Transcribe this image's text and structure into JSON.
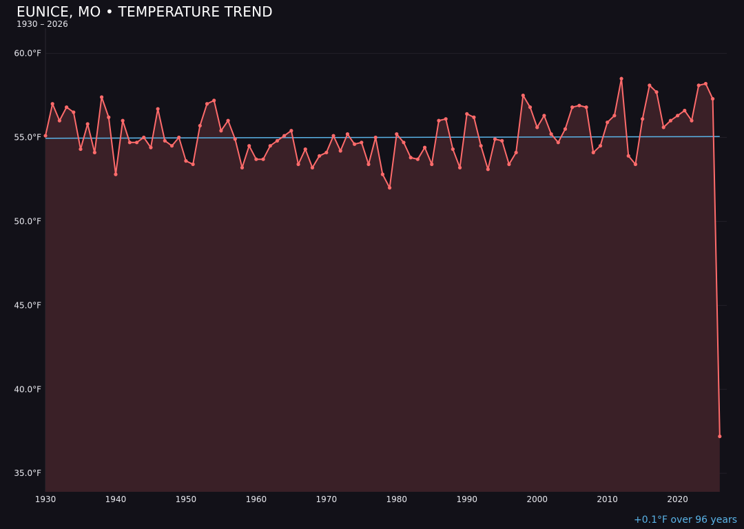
{
  "chart_data": {
    "type": "line",
    "title": "EUNICE, MO • TEMPERATURE TREND",
    "subtitle": "1930 – 2026",
    "annotation": "+0.1°F over 96 years",
    "xlim": [
      1930,
      2027
    ],
    "ylim": [
      33.9,
      61.5
    ],
    "x_ticks": [
      1930,
      1940,
      1950,
      1960,
      1970,
      1980,
      1990,
      2000,
      2010,
      2020
    ],
    "y_ticks": [
      35,
      40,
      45,
      50,
      55,
      60
    ],
    "y_tick_labels": [
      "35.0°F",
      "40.0°F",
      "45.0°F",
      "50.0°F",
      "55.0°F",
      "60.0°F"
    ],
    "grid": true,
    "colors": {
      "series": "#ff6b6b",
      "fill": "#3a2027",
      "trend": "#5ab4e8",
      "background": "#121118"
    },
    "series": [
      {
        "x": [
          1930,
          1931,
          1932,
          1933,
          1934,
          1935,
          1936,
          1937,
          1938,
          1939,
          1940,
          1941,
          1942,
          1943,
          1944,
          1945,
          1946,
          1947,
          1948,
          1949,
          1950,
          1951,
          1952,
          1953,
          1954,
          1955,
          1956,
          1957,
          1958,
          1959,
          1960,
          1961,
          1962,
          1963,
          1964,
          1965,
          1966,
          1967,
          1968,
          1969,
          1970,
          1971,
          1972,
          1973,
          1974,
          1975,
          1976,
          1977,
          1978,
          1979,
          1980,
          1981,
          1982,
          1983,
          1984,
          1985,
          1986,
          1987,
          1988,
          1989,
          1990,
          1991,
          1992,
          1993,
          1994,
          1995,
          1996,
          1997,
          1998,
          1999,
          2000,
          2001,
          2002,
          2003,
          2004,
          2005,
          2006,
          2007,
          2008,
          2009,
          2010,
          2011,
          2012,
          2013,
          2014,
          2015,
          2016,
          2017,
          2018,
          2019,
          2020,
          2021,
          2022,
          2023,
          2024,
          2025,
          2026
        ],
        "values": [
          55.1,
          57.0,
          56.0,
          56.8,
          56.5,
          54.3,
          55.8,
          54.1,
          57.4,
          56.2,
          52.8,
          56.0,
          54.7,
          54.7,
          55.0,
          54.4,
          56.7,
          54.8,
          54.5,
          55.0,
          53.6,
          53.4,
          55.7,
          57.0,
          57.2,
          55.4,
          56.0,
          54.9,
          53.2,
          54.5,
          53.7,
          53.7,
          54.5,
          54.8,
          55.1,
          55.4,
          53.4,
          54.3,
          53.2,
          53.9,
          54.1,
          55.1,
          54.2,
          55.2,
          54.6,
          54.7,
          53.4,
          55.0,
          52.8,
          52.0,
          55.2,
          54.7,
          53.8,
          53.7,
          54.4,
          53.4,
          56.0,
          56.1,
          54.3,
          53.2,
          56.4,
          56.2,
          54.5,
          53.1,
          54.9,
          54.8,
          53.4,
          54.1,
          57.5,
          56.8,
          55.6,
          56.3,
          55.2,
          54.7,
          55.5,
          56.8,
          56.9,
          56.8,
          54.1,
          54.5,
          55.9,
          56.3,
          58.5,
          53.9,
          53.4,
          56.1,
          58.1,
          57.7,
          55.6,
          56.0,
          56.3,
          56.6,
          56.0,
          58.1,
          58.2,
          57.3,
          37.2
        ]
      }
    ],
    "trend": {
      "x": [
        1930,
        2026
      ],
      "values": [
        54.95,
        55.05
      ]
    }
  }
}
